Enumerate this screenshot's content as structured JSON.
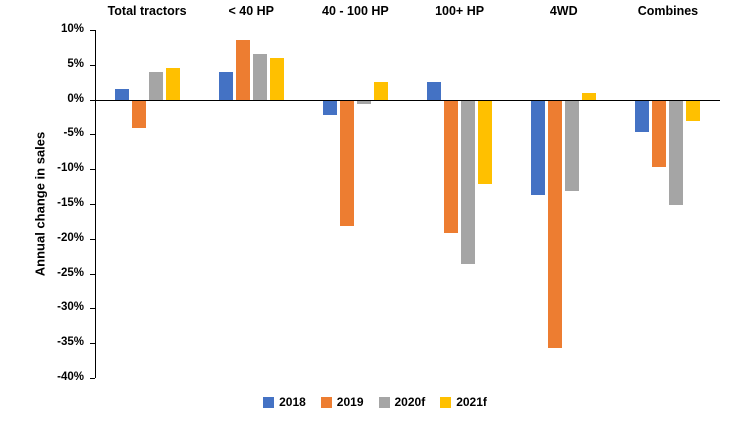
{
  "chart_data": {
    "type": "bar",
    "title": "",
    "xlabel": "",
    "ylabel": "Annual change in sales",
    "ylim": [
      -40,
      10
    ],
    "ytick_step": 5,
    "ytick_suffix": "%",
    "grid": false,
    "legend_position": "bottom",
    "categories": [
      "Total tractors",
      "< 40 HP",
      "40 - 100 HP",
      "100+ HP",
      "4WD",
      "Combines"
    ],
    "series": [
      {
        "name": "2018",
        "color": "#4472C4",
        "values": [
          1.5,
          4,
          -2,
          2.5,
          -13.5,
          -4.5
        ]
      },
      {
        "name": "2019",
        "color": "#ED7D31",
        "values": [
          -4,
          8.5,
          -18,
          -19,
          -35.5,
          -9.5
        ]
      },
      {
        "name": "2020f",
        "color": "#A5A5A5",
        "values": [
          4,
          6.5,
          -0.5,
          -23.5,
          -13,
          -15
        ]
      },
      {
        "name": "2021f",
        "color": "#FFC000",
        "values": [
          4.5,
          6,
          2.5,
          -12,
          1,
          -3
        ]
      }
    ]
  }
}
